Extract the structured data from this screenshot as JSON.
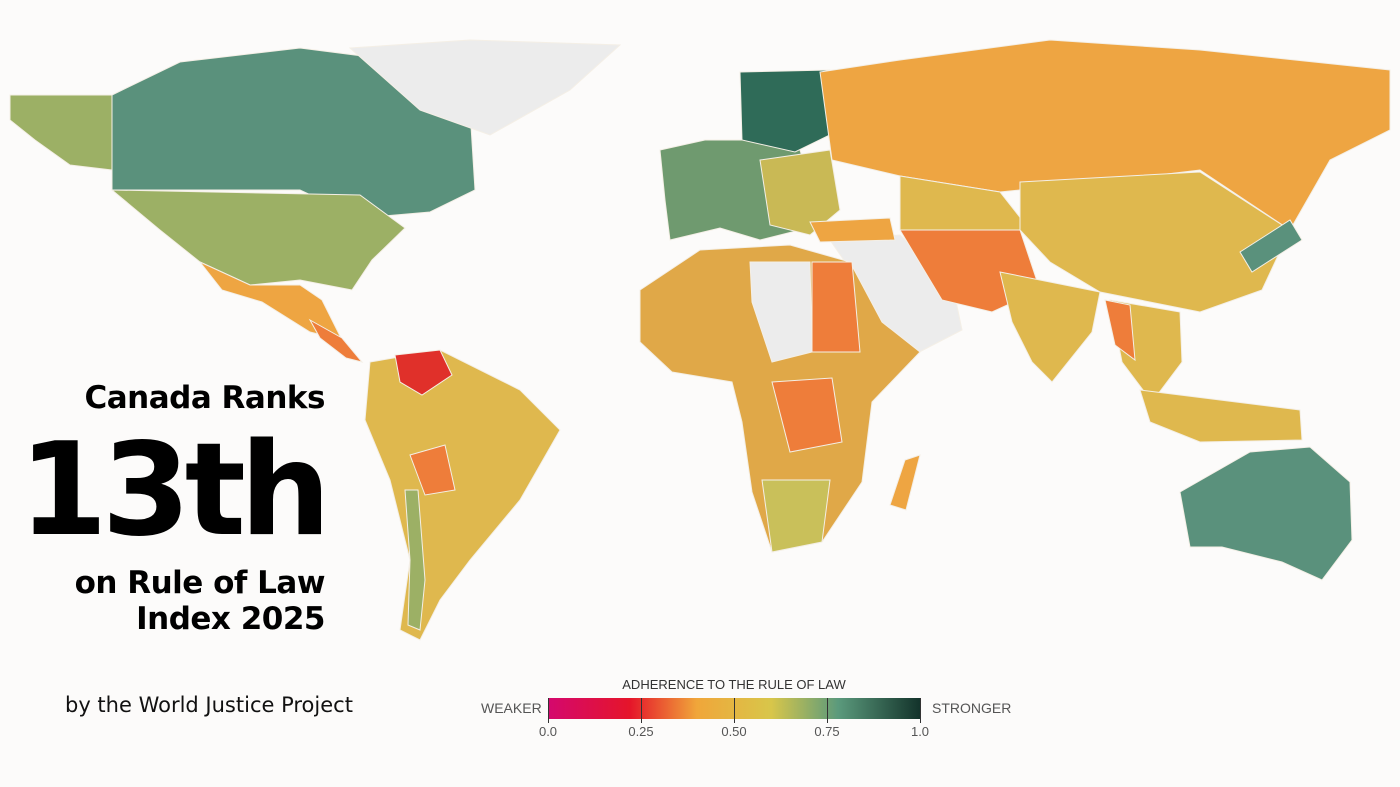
{
  "headline": {
    "line1": "Canada Ranks",
    "rank": "13th",
    "line3": "on Rule of Law",
    "line4": "Index 2025"
  },
  "byline": "by the World Justice Project",
  "legend": {
    "title": "ADHERENCE TO THE RULE OF LAW",
    "low_label": "WEAKER",
    "high_label": "STRONGER",
    "ticks": [
      "0.0",
      "0.25",
      "0.50",
      "0.75",
      "1.0"
    ],
    "scale_colors": [
      "#d4086e",
      "#e5152a",
      "#f0a63a",
      "#d8c64a",
      "#5b9a7c",
      "#13332b"
    ]
  },
  "map_colors": {
    "no_data": "#ececec",
    "strong": "#5a917c",
    "upper_mid": "#9cb065",
    "mid": "#dfb84e",
    "lower_mid": "#eea542",
    "weak": "#ee7d3a",
    "weakest": "#e0302a"
  }
}
